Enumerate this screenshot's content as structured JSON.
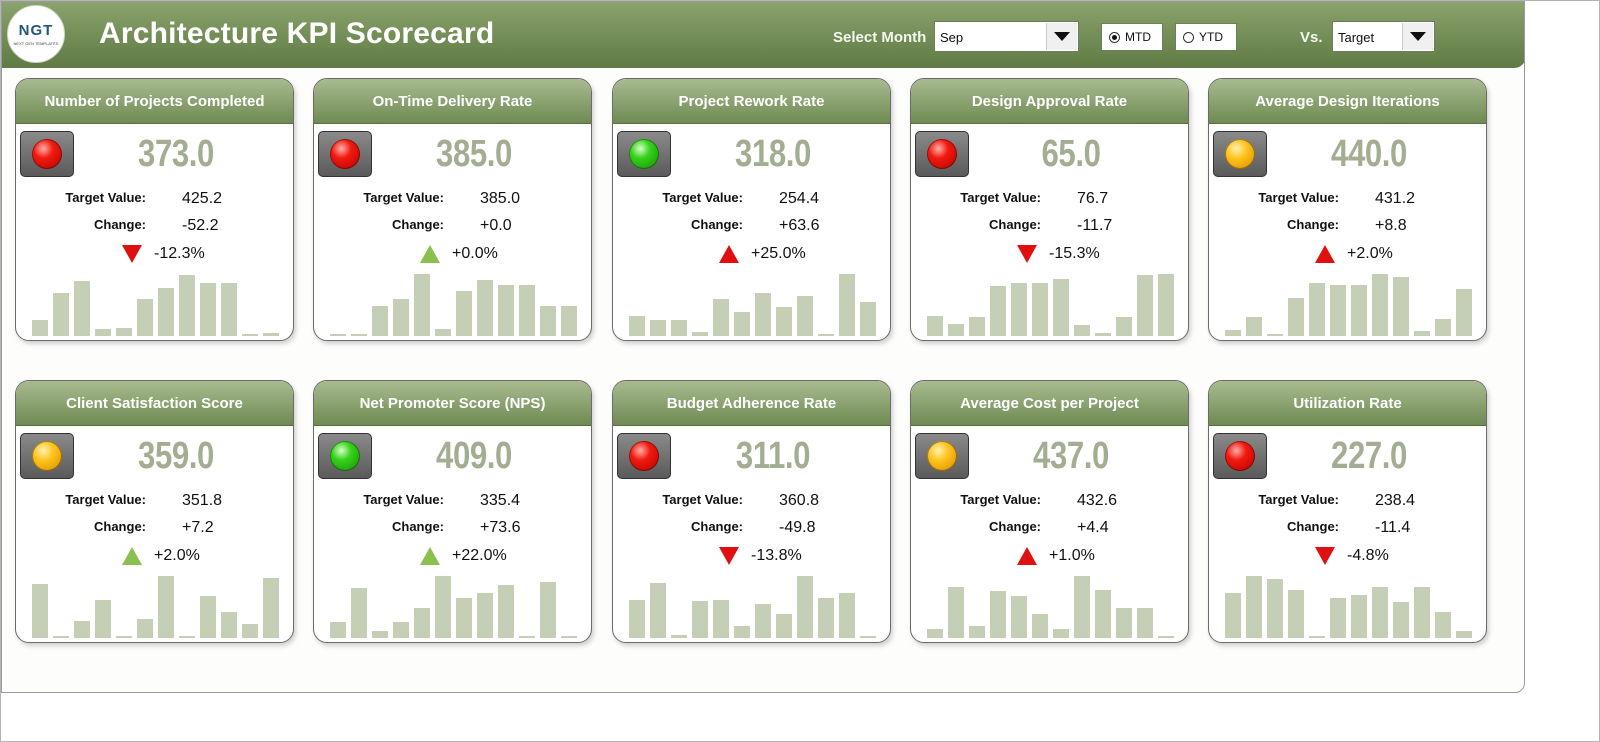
{
  "header": {
    "logo_text": "NGT",
    "logo_subtext": "NEXT GEN TEMPLATES",
    "title": "Architecture KPI Scorecard",
    "select_month_label": "Select Month",
    "month_value": "Sep",
    "radio_mtd": "MTD",
    "radio_ytd": "YTD",
    "radio_selected": "MTD",
    "vs_label": "Vs.",
    "vs_value": "Target"
  },
  "labels": {
    "target": "Target Value:",
    "change": "Change:"
  },
  "cards": [
    {
      "title": "Number of Projects Completed",
      "value": "373.0",
      "status": "red",
      "target": "425.2",
      "change": "-52.2",
      "pct": "-12.3%",
      "direction": "down",
      "arrow_color": "red",
      "trend": [
        0.25,
        0.7,
        0.88,
        0.12,
        0.13,
        0.6,
        0.78,
        0.98,
        0.85,
        0.85,
        0.03,
        0.05
      ]
    },
    {
      "title": "On-Time Delivery Rate",
      "value": "385.0",
      "status": "red",
      "target": "385.0",
      "change": "+0.0",
      "pct": "+0.0%",
      "direction": "up",
      "arrow_color": "green",
      "trend": [
        0.03,
        0.03,
        0.48,
        0.6,
        1.0,
        0.12,
        0.72,
        0.9,
        0.82,
        0.82,
        0.48,
        0.48
      ]
    },
    {
      "title": "Project Rework Rate",
      "value": "318.0",
      "status": "green",
      "target": "254.4",
      "change": "+63.6",
      "pct": "+25.0%",
      "direction": "up",
      "arrow_color": "red",
      "trend": [
        0.33,
        0.25,
        0.25,
        0.07,
        0.6,
        0.38,
        0.7,
        0.47,
        0.65,
        0.02,
        1.0,
        0.55
      ]
    },
    {
      "title": "Design Approval Rate",
      "value": "65.0",
      "status": "red",
      "target": "76.7",
      "change": "-11.7",
      "pct": "-15.3%",
      "direction": "down",
      "arrow_color": "red",
      "trend": [
        0.33,
        0.2,
        0.3,
        0.8,
        0.85,
        0.85,
        0.92,
        0.18,
        0.05,
        0.3,
        0.98,
        1.0
      ]
    },
    {
      "title": "Average Design Iterations",
      "value": "440.0",
      "status": "yellow",
      "target": "431.2",
      "change": "+8.8",
      "pct": "+2.0%",
      "direction": "up",
      "arrow_color": "red",
      "trend": [
        0.1,
        0.3,
        0.03,
        0.62,
        0.85,
        0.82,
        0.82,
        1.0,
        0.95,
        0.08,
        0.28,
        0.75
      ]
    },
    {
      "title": "Client Satisfaction Score",
      "value": "359.0",
      "status": "yellow",
      "target": "351.8",
      "change": "+7.2",
      "pct": "+2.0%",
      "direction": "up",
      "arrow_color": "green",
      "trend": [
        0.87,
        0.03,
        0.27,
        0.62,
        0.03,
        0.3,
        1.0,
        0.03,
        0.68,
        0.42,
        0.23,
        0.97
      ]
    },
    {
      "title": "Net Promoter Score (NPS)",
      "value": "409.0",
      "status": "green",
      "target": "335.4",
      "change": "+73.6",
      "pct": "+22.0%",
      "direction": "up",
      "arrow_color": "green",
      "trend": [
        0.25,
        0.8,
        0.12,
        0.25,
        0.48,
        1.0,
        0.65,
        0.72,
        0.85,
        0.03,
        0.9,
        0.03
      ]
    },
    {
      "title": "Budget Adherence Rate",
      "value": "311.0",
      "status": "red",
      "target": "360.8",
      "change": "-49.8",
      "pct": "-13.8%",
      "direction": "down",
      "arrow_color": "red",
      "trend": [
        0.62,
        0.88,
        0.05,
        0.6,
        0.62,
        0.2,
        0.55,
        0.38,
        1.0,
        0.65,
        0.72,
        0.02
      ]
    },
    {
      "title": "Average Cost per Project",
      "value": "437.0",
      "status": "yellow",
      "target": "432.6",
      "change": "+4.4",
      "pct": "+1.0%",
      "direction": "up",
      "arrow_color": "red",
      "trend": [
        0.15,
        0.82,
        0.2,
        0.75,
        0.68,
        0.38,
        0.15,
        1.0,
        0.78,
        0.48,
        0.48,
        0.03
      ]
    },
    {
      "title": "Utilization Rate",
      "value": "227.0",
      "status": "red",
      "target": "238.4",
      "change": "-11.4",
      "pct": "-4.8%",
      "direction": "down",
      "arrow_color": "red",
      "trend": [
        0.72,
        1.0,
        0.95,
        0.78,
        0.03,
        0.65,
        0.7,
        0.82,
        0.58,
        0.82,
        0.42,
        0.12
      ]
    }
  ]
}
